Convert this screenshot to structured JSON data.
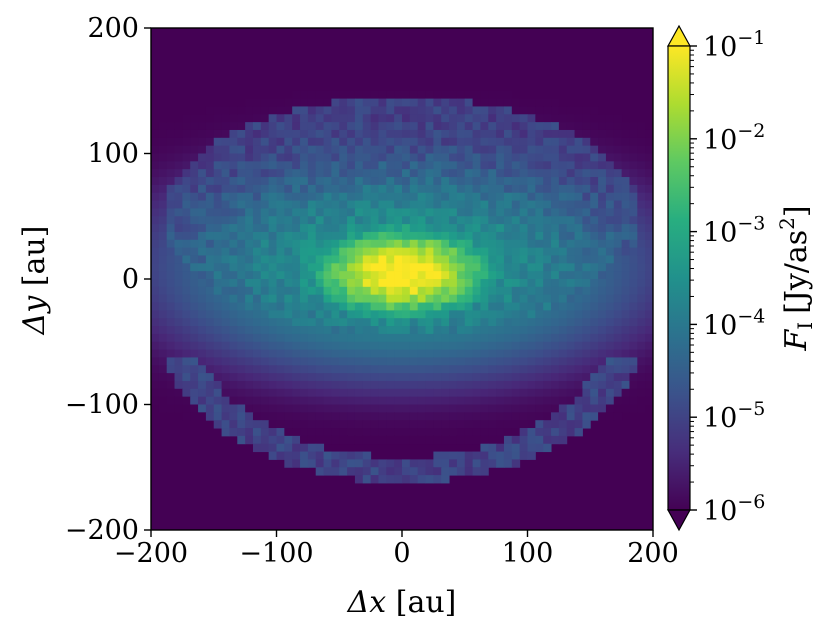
{
  "chart_data": {
    "type": "heatmap",
    "title": "",
    "x": {
      "label_symbol": "Δx",
      "label_unit": "[au]",
      "range": [
        -200,
        200
      ],
      "ticks": [
        -200,
        -100,
        0,
        100,
        200
      ],
      "tick_labels": [
        "−200",
        "−100",
        "0",
        "100",
        "200"
      ]
    },
    "y": {
      "label_symbol": "Δy",
      "label_unit": "[au]",
      "range": [
        -200,
        200
      ],
      "ticks": [
        -200,
        -100,
        0,
        100,
        200
      ],
      "tick_labels": [
        "−200",
        "−100",
        "0",
        "100",
        "200"
      ]
    },
    "grid": false,
    "colormap": "viridis",
    "colorbar": {
      "scale": "log",
      "range": [
        1e-06,
        0.1
      ],
      "extend": "both",
      "ticks": [
        {
          "base": "10",
          "exp": "−1",
          "value": 0.1
        },
        {
          "base": "10",
          "exp": "−2",
          "value": 0.01
        },
        {
          "base": "10",
          "exp": "−3",
          "value": 0.001
        },
        {
          "base": "10",
          "exp": "−4",
          "value": 0.0001
        },
        {
          "base": "10",
          "exp": "−5",
          "value": 1e-05
        },
        {
          "base": "10",
          "exp": "−6",
          "value": 1e-06
        }
      ],
      "label": {
        "symbol": "F",
        "subscript": "I",
        "unit_open": "[Jy/as",
        "unit_sup": "2",
        "unit_close": "]"
      }
    },
    "model": {
      "grid_cells": 64,
      "background_flux": 1e-06,
      "disk": {
        "center": [
          0,
          50
        ],
        "semi_major_x": 190,
        "semi_minor_y": 95,
        "flux": 7.5e-06
      },
      "core_glow": {
        "center": [
          0,
          10
        ],
        "sigma_x": 70,
        "sigma_y": 32,
        "peak_flux": 0.0005
      },
      "bright_core": {
        "center": [
          0,
          5
        ],
        "sigma_x": 20,
        "sigma_y": 10,
        "peak_flux": 0.15
      },
      "lower_arc": {
        "center": [
          0,
          -25
        ],
        "semi_major_x": 185,
        "semi_minor_y": 127,
        "thickness": 20,
        "from_y": -170,
        "to_y": -60,
        "flux": 9e-06
      }
    }
  }
}
